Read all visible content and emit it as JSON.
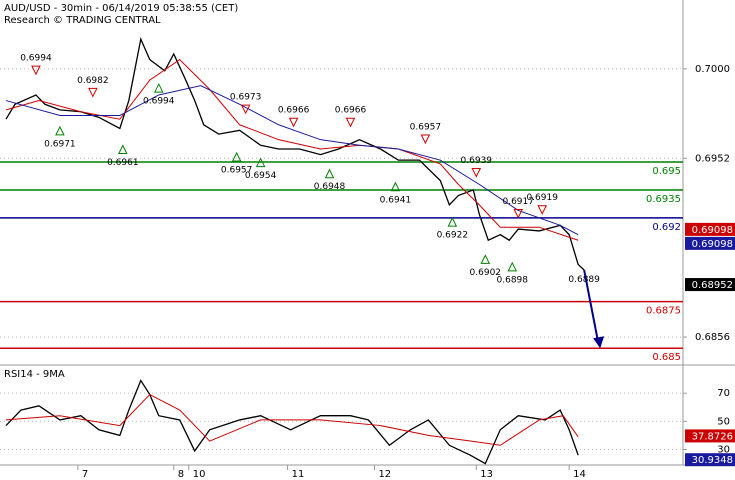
{
  "chart_data": [
    {
      "type": "line",
      "title": "AUD/USD - 30min - 06/14/2019 05:38:55 (CET)",
      "subtitle": "Research © TRADING CENTRAL",
      "xlim": [
        0,
        228
      ],
      "ylim": [
        0.6841,
        0.7037
      ],
      "xticks": [
        {
          "value": 26,
          "label": "7"
        },
        {
          "value": 58,
          "label": "8"
        },
        {
          "value": 63,
          "label": "10"
        },
        {
          "value": 96,
          "label": "11"
        },
        {
          "value": 125,
          "label": "12"
        },
        {
          "value": 159,
          "label": "13"
        },
        {
          "value": 190,
          "label": "14"
        }
      ],
      "yticks": [
        {
          "value": 0.7,
          "label": "0.7000"
        },
        0.6952,
        0.6856
      ],
      "grid": true,
      "series": [
        {
          "color": "#000000",
          "x": [
            2,
            5,
            12,
            15,
            20,
            27,
            33,
            40,
            43,
            47,
            50,
            55,
            58,
            62,
            65,
            68,
            73,
            80,
            87,
            93,
            100,
            107,
            113,
            120,
            127,
            133,
            140,
            147,
            150,
            153,
            158,
            160,
            163,
            167,
            170,
            173,
            180,
            187,
            190,
            193,
            195
          ],
          "values": [
            0.6973,
            0.6981,
            0.6986,
            0.6981,
            0.6978,
            0.6977,
            0.6974,
            0.6968,
            0.6983,
            0.7016,
            0.7005,
            0.6999,
            0.7008,
            0.6994,
            0.6983,
            0.697,
            0.6965,
            0.6967,
            0.6959,
            0.6957,
            0.6957,
            0.6954,
            0.6957,
            0.6962,
            0.6957,
            0.6951,
            0.6951,
            0.694,
            0.6927,
            0.6932,
            0.6935,
            0.6922,
            0.6908,
            0.6911,
            0.6908,
            0.6914,
            0.6913,
            0.6916,
            0.6911,
            0.6895,
            0.6892
          ]
        },
        {
          "color": "#cc0000",
          "x": [
            2,
            13,
            27,
            40,
            50,
            60,
            70,
            80,
            93,
            107,
            120,
            133,
            147,
            153,
            160,
            167,
            180,
            193
          ],
          "values": [
            0.6978,
            0.6983,
            0.6977,
            0.6973,
            0.6994,
            0.7005,
            0.6989,
            0.697,
            0.6962,
            0.6957,
            0.6959,
            0.6957,
            0.6949,
            0.6938,
            0.6927,
            0.6915,
            0.6915,
            0.6908
          ]
        },
        {
          "color": "#1a1a9c",
          "x": [
            2,
            20,
            40,
            53,
            67,
            80,
            93,
            107,
            120,
            133,
            147,
            160,
            173,
            187,
            193
          ],
          "values": [
            0.6983,
            0.6975,
            0.6975,
            0.6986,
            0.6991,
            0.6981,
            0.697,
            0.6962,
            0.6959,
            0.6957,
            0.6951,
            0.6938,
            0.6924,
            0.6916,
            0.6911
          ]
        }
      ],
      "levels": [
        {
          "value": 0.695,
          "color": "#008000"
        },
        {
          "value": 0.6935,
          "color": "#008000"
        },
        {
          "value": 0.692,
          "color": "#00008b"
        },
        {
          "value": 0.6875,
          "color": "#cc0000"
        },
        {
          "value": 0.685,
          "color": "#cc0000"
        }
      ],
      "badges": [
        {
          "value": 0.69098,
          "color": "#cc0000"
        },
        {
          "value": 0.69098,
          "color": "#1a1a9c"
        },
        {
          "value": 0.68952,
          "color": "#000000"
        }
      ],
      "annotations": [
        {
          "x": 12,
          "value": 0.6994,
          "marker": "down"
        },
        {
          "x": 20,
          "value": 0.6971,
          "marker": "up"
        },
        {
          "x": 31,
          "value": 0.6982,
          "marker": "down"
        },
        {
          "x": 41,
          "value": 0.6961,
          "marker": "up"
        },
        {
          "x": 53,
          "value": 0.6994,
          "marker": "up"
        },
        {
          "x": 82,
          "value": 0.6973,
          "marker": "down"
        },
        {
          "x": 79,
          "value": 0.6957,
          "marker": "up"
        },
        {
          "x": 87,
          "value": 0.6954,
          "marker": "up"
        },
        {
          "x": 98,
          "value": 0.6966,
          "marker": "down"
        },
        {
          "x": 110,
          "value": 0.6948,
          "marker": "up"
        },
        {
          "x": 117,
          "value": 0.6966,
          "marker": "down"
        },
        {
          "x": 132,
          "value": 0.6941,
          "marker": "up"
        },
        {
          "x": 142,
          "value": 0.6957,
          "marker": "down"
        },
        {
          "x": 159,
          "value": 0.6939,
          "marker": "down"
        },
        {
          "x": 151,
          "value": 0.6922,
          "marker": "up"
        },
        {
          "x": 162,
          "value": 0.6902,
          "marker": "up"
        },
        {
          "x": 173,
          "value": 0.6917,
          "marker": "down"
        },
        {
          "x": 171,
          "value": 0.6898,
          "marker": "up"
        },
        {
          "x": 181,
          "value": 0.6919,
          "marker": "down"
        },
        {
          "x": 195,
          "value": 0.6889,
          "marker": "none"
        }
      ]
    },
    {
      "type": "line",
      "title": "RSI14 - 9MA",
      "xlim": [
        0,
        228
      ],
      "ylim": [
        19,
        90
      ],
      "yticks": [
        30,
        50,
        70
      ],
      "grid": true,
      "series": [
        {
          "color": "#000000",
          "x": [
            2,
            7,
            13,
            20,
            27,
            33,
            40,
            43,
            47,
            50,
            53,
            60,
            65,
            70,
            80,
            87,
            97,
            107,
            117,
            123,
            130,
            137,
            143,
            150,
            157,
            162,
            167,
            173,
            182,
            187,
            190,
            193
          ],
          "values": [
            47,
            58,
            61,
            51,
            54,
            44,
            40,
            58,
            79,
            69,
            54,
            51,
            29,
            44,
            51,
            54,
            44,
            54,
            54,
            51,
            33,
            44,
            51,
            33,
            26,
            20,
            44,
            54,
            51,
            58,
            44,
            26
          ]
        },
        {
          "color": "#cc0000",
          "x": [
            2,
            20,
            40,
            50,
            60,
            70,
            87,
            107,
            127,
            143,
            157,
            167,
            180,
            188,
            193
          ],
          "values": [
            51,
            54,
            47,
            69,
            58,
            36,
            51,
            51,
            47,
            40,
            36,
            33,
            51,
            54,
            39
          ]
        }
      ],
      "badges": [
        {
          "value": 37.8726,
          "color": "#cc0000"
        },
        {
          "value": 30.9348,
          "color": "#1a1a9c"
        }
      ]
    }
  ]
}
